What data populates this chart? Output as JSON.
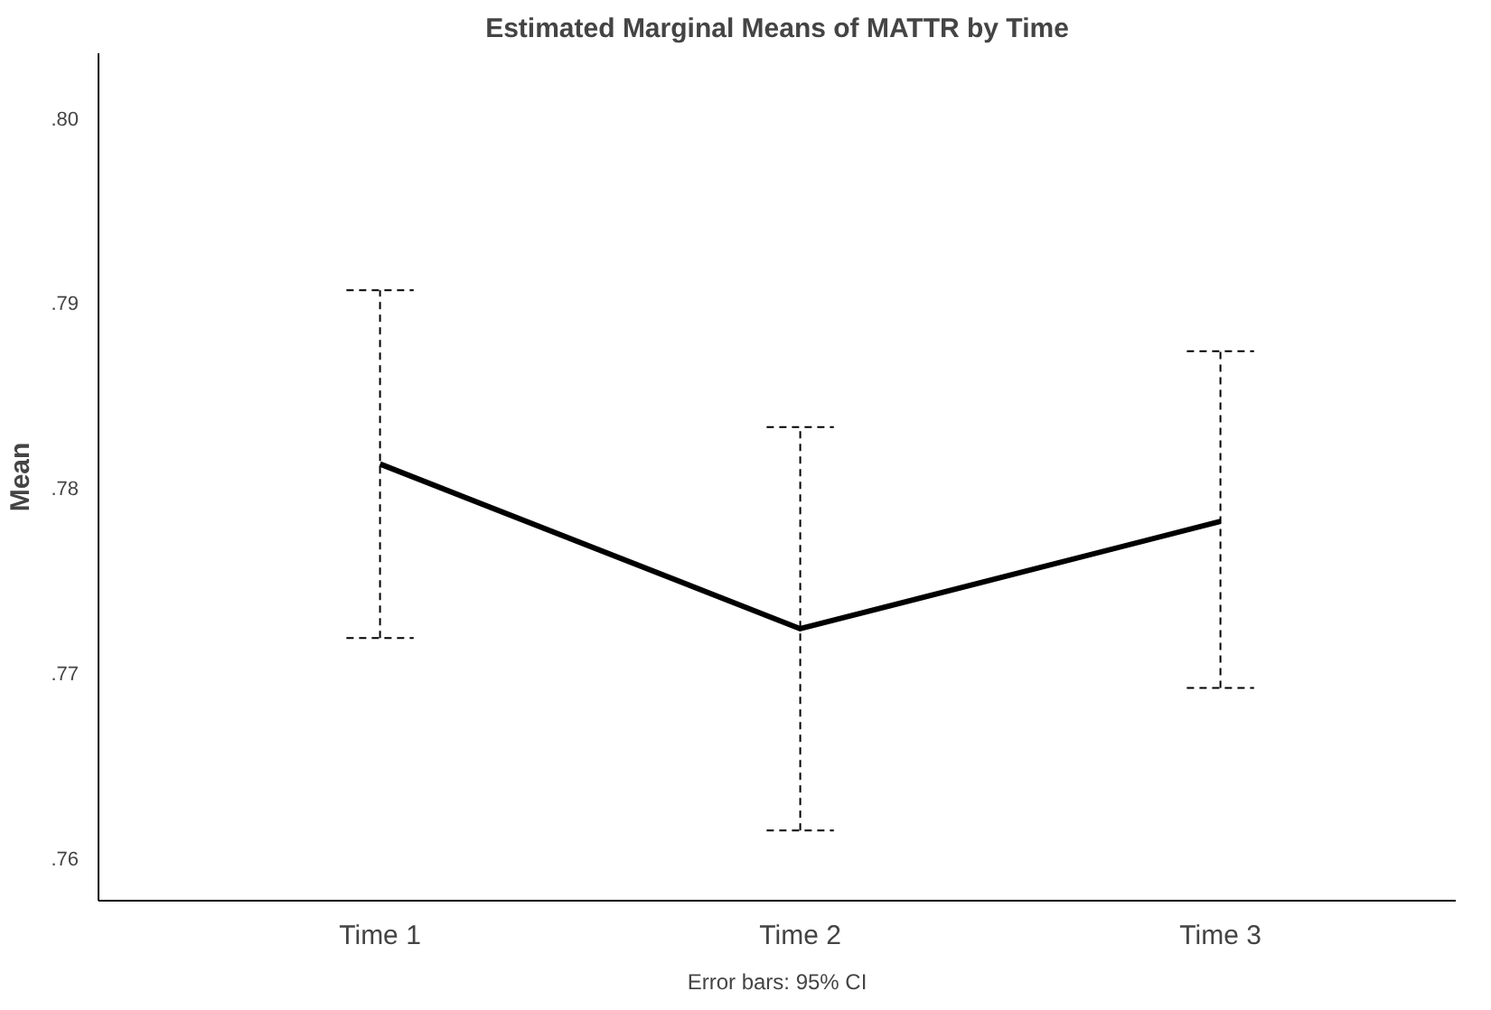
{
  "chart_data": {
    "type": "line",
    "title": "Estimated Marginal Means of MATTR by Time",
    "ylabel": "Mean",
    "annotations": [
      "Error bars: 95% CI"
    ],
    "categories": [
      "Time 1",
      "Time 2",
      "Time 3"
    ],
    "series": [
      {
        "color": "#000000",
        "values": [
          0.7813,
          0.7724,
          0.7782
        ],
        "errors": [
          [
            0.7719,
            0.7907
          ],
          [
            0.7615,
            0.7833
          ],
          [
            0.7692,
            0.7874
          ]
        ]
      }
    ],
    "ylim": [
      0.7577,
      0.8035
    ],
    "yticks": [
      {
        "value": 0.76,
        "label": ".76"
      },
      {
        "value": 0.77,
        "label": ".77"
      },
      {
        "value": 0.78,
        "label": ".78"
      },
      {
        "value": 0.79,
        "label": ".79"
      },
      {
        "value": 0.8,
        "label": ".80"
      }
    ],
    "marker": "none",
    "line_style": "solid"
  }
}
